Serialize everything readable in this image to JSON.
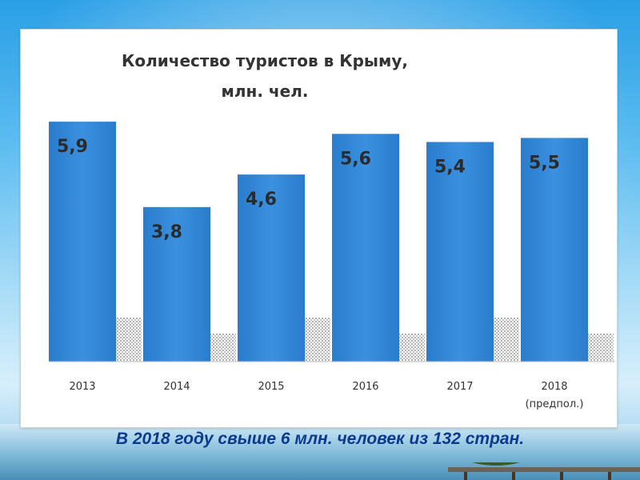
{
  "caption": "В 2018 году свыше 6 млн. человек  из 132 стран.",
  "colors": {
    "bar": "#2e84d6",
    "bar_light": "#4f9fe8",
    "label": "#333333",
    "caption": "#0b3a8f"
  },
  "chart_data": {
    "type": "bar",
    "title_lines": [
      "Количество туристов в Крыму,",
      "млн. чел."
    ],
    "categories": [
      "2013",
      "2014",
      "2015",
      "2016",
      "2017",
      "2018"
    ],
    "category_sublabels": [
      "",
      "",
      "",
      "",
      "",
      "(предпол.)"
    ],
    "values": [
      5.9,
      3.8,
      4.6,
      5.6,
      5.4,
      5.5
    ],
    "data_labels": [
      "5,9",
      "3,8",
      "4,6",
      "5,6",
      "5,4",
      "5,5"
    ],
    "ylim": [
      0,
      6
    ],
    "grid": false,
    "legend": "none"
  }
}
